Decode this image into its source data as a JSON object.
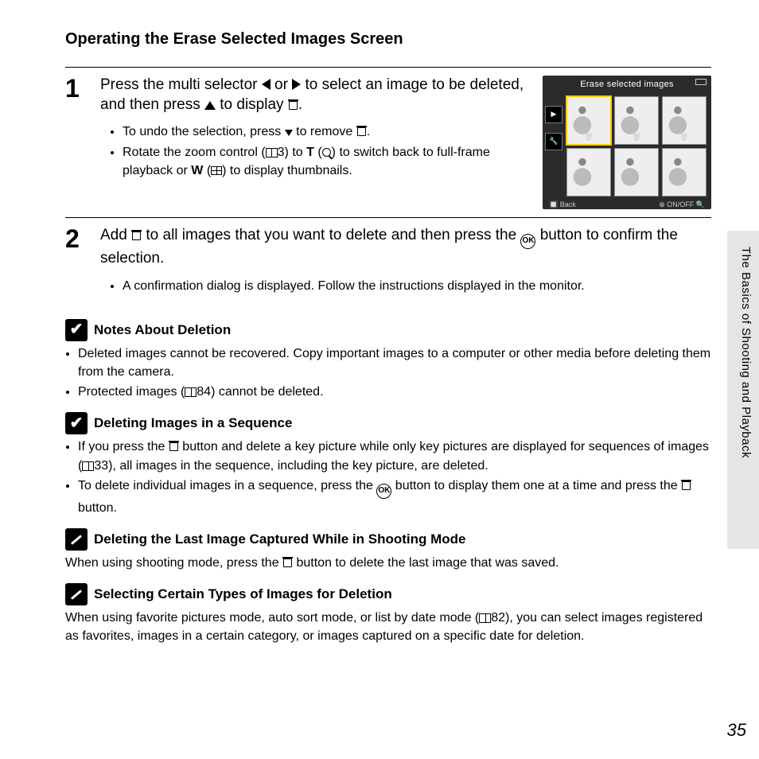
{
  "page": {
    "title": "Operating the Erase Selected Images Screen",
    "number": "35",
    "side_label": "The Basics of Shooting and Playback"
  },
  "camera_screen": {
    "title": "Erase selected images",
    "footer_left": "Back",
    "footer_right": "ON/OFF"
  },
  "steps": [
    {
      "num": "1",
      "main_pre": "Press the multi selector ",
      "main_mid1": " or ",
      "main_mid2": " to select an image to be deleted, and then press ",
      "main_post": " to display ",
      "bullet1_pre": "To undo the selection, press ",
      "bullet1_post": " to remove ",
      "bullet2_pre": "Rotate the zoom control (",
      "bullet2_ref": "3",
      "bullet2_mid1": ") to ",
      "bullet2_T": "T",
      "bullet2_mid2": " (",
      "bullet2_mid3": ") to switch back to full-frame playback or ",
      "bullet2_W": "W",
      "bullet2_mid4": " (",
      "bullet2_post": ") to display thumbnails."
    },
    {
      "num": "2",
      "main_pre": "Add ",
      "main_mid": " to all images that you want to delete and then press the ",
      "main_ok": "OK",
      "main_post": " button to confirm the selection.",
      "bullet1": "A confirmation dialog is displayed. Follow the instructions displayed in the monitor."
    }
  ],
  "notes": [
    {
      "icon": "check",
      "title": "Notes About Deletion",
      "items": [
        {
          "text": "Deleted images cannot be recovered. Copy important images to a computer or other media before deleting them from the camera."
        },
        {
          "pre": "Protected images (",
          "ref": "84",
          "post": ") cannot be deleted."
        }
      ]
    },
    {
      "icon": "check",
      "title": "Deleting Images in a Sequence",
      "items": [
        {
          "pre": "If you press the ",
          "mid": " button and delete a key picture while only key pictures are displayed for sequences of images (",
          "ref": "33",
          "post": "), all images in the sequence, including the key picture, are deleted."
        },
        {
          "pre": "To delete individual images in a sequence, press the ",
          "ok": "OK",
          "mid2": " button to display them one at a time and press the ",
          "post": " button."
        }
      ]
    },
    {
      "icon": "pencil",
      "title": "Deleting the Last Image Captured While in Shooting Mode",
      "body_pre": "When using shooting mode, press the ",
      "body_post": " button to delete the last image that was saved."
    },
    {
      "icon": "pencil",
      "title": "Selecting Certain Types of Images for Deletion",
      "body_pre": "When using favorite pictures mode, auto sort mode, or list by date mode (",
      "body_ref": "82",
      "body_post": "), you can select images registered as favorites, images in a certain category, or images captured on a specific date for deletion."
    }
  ]
}
